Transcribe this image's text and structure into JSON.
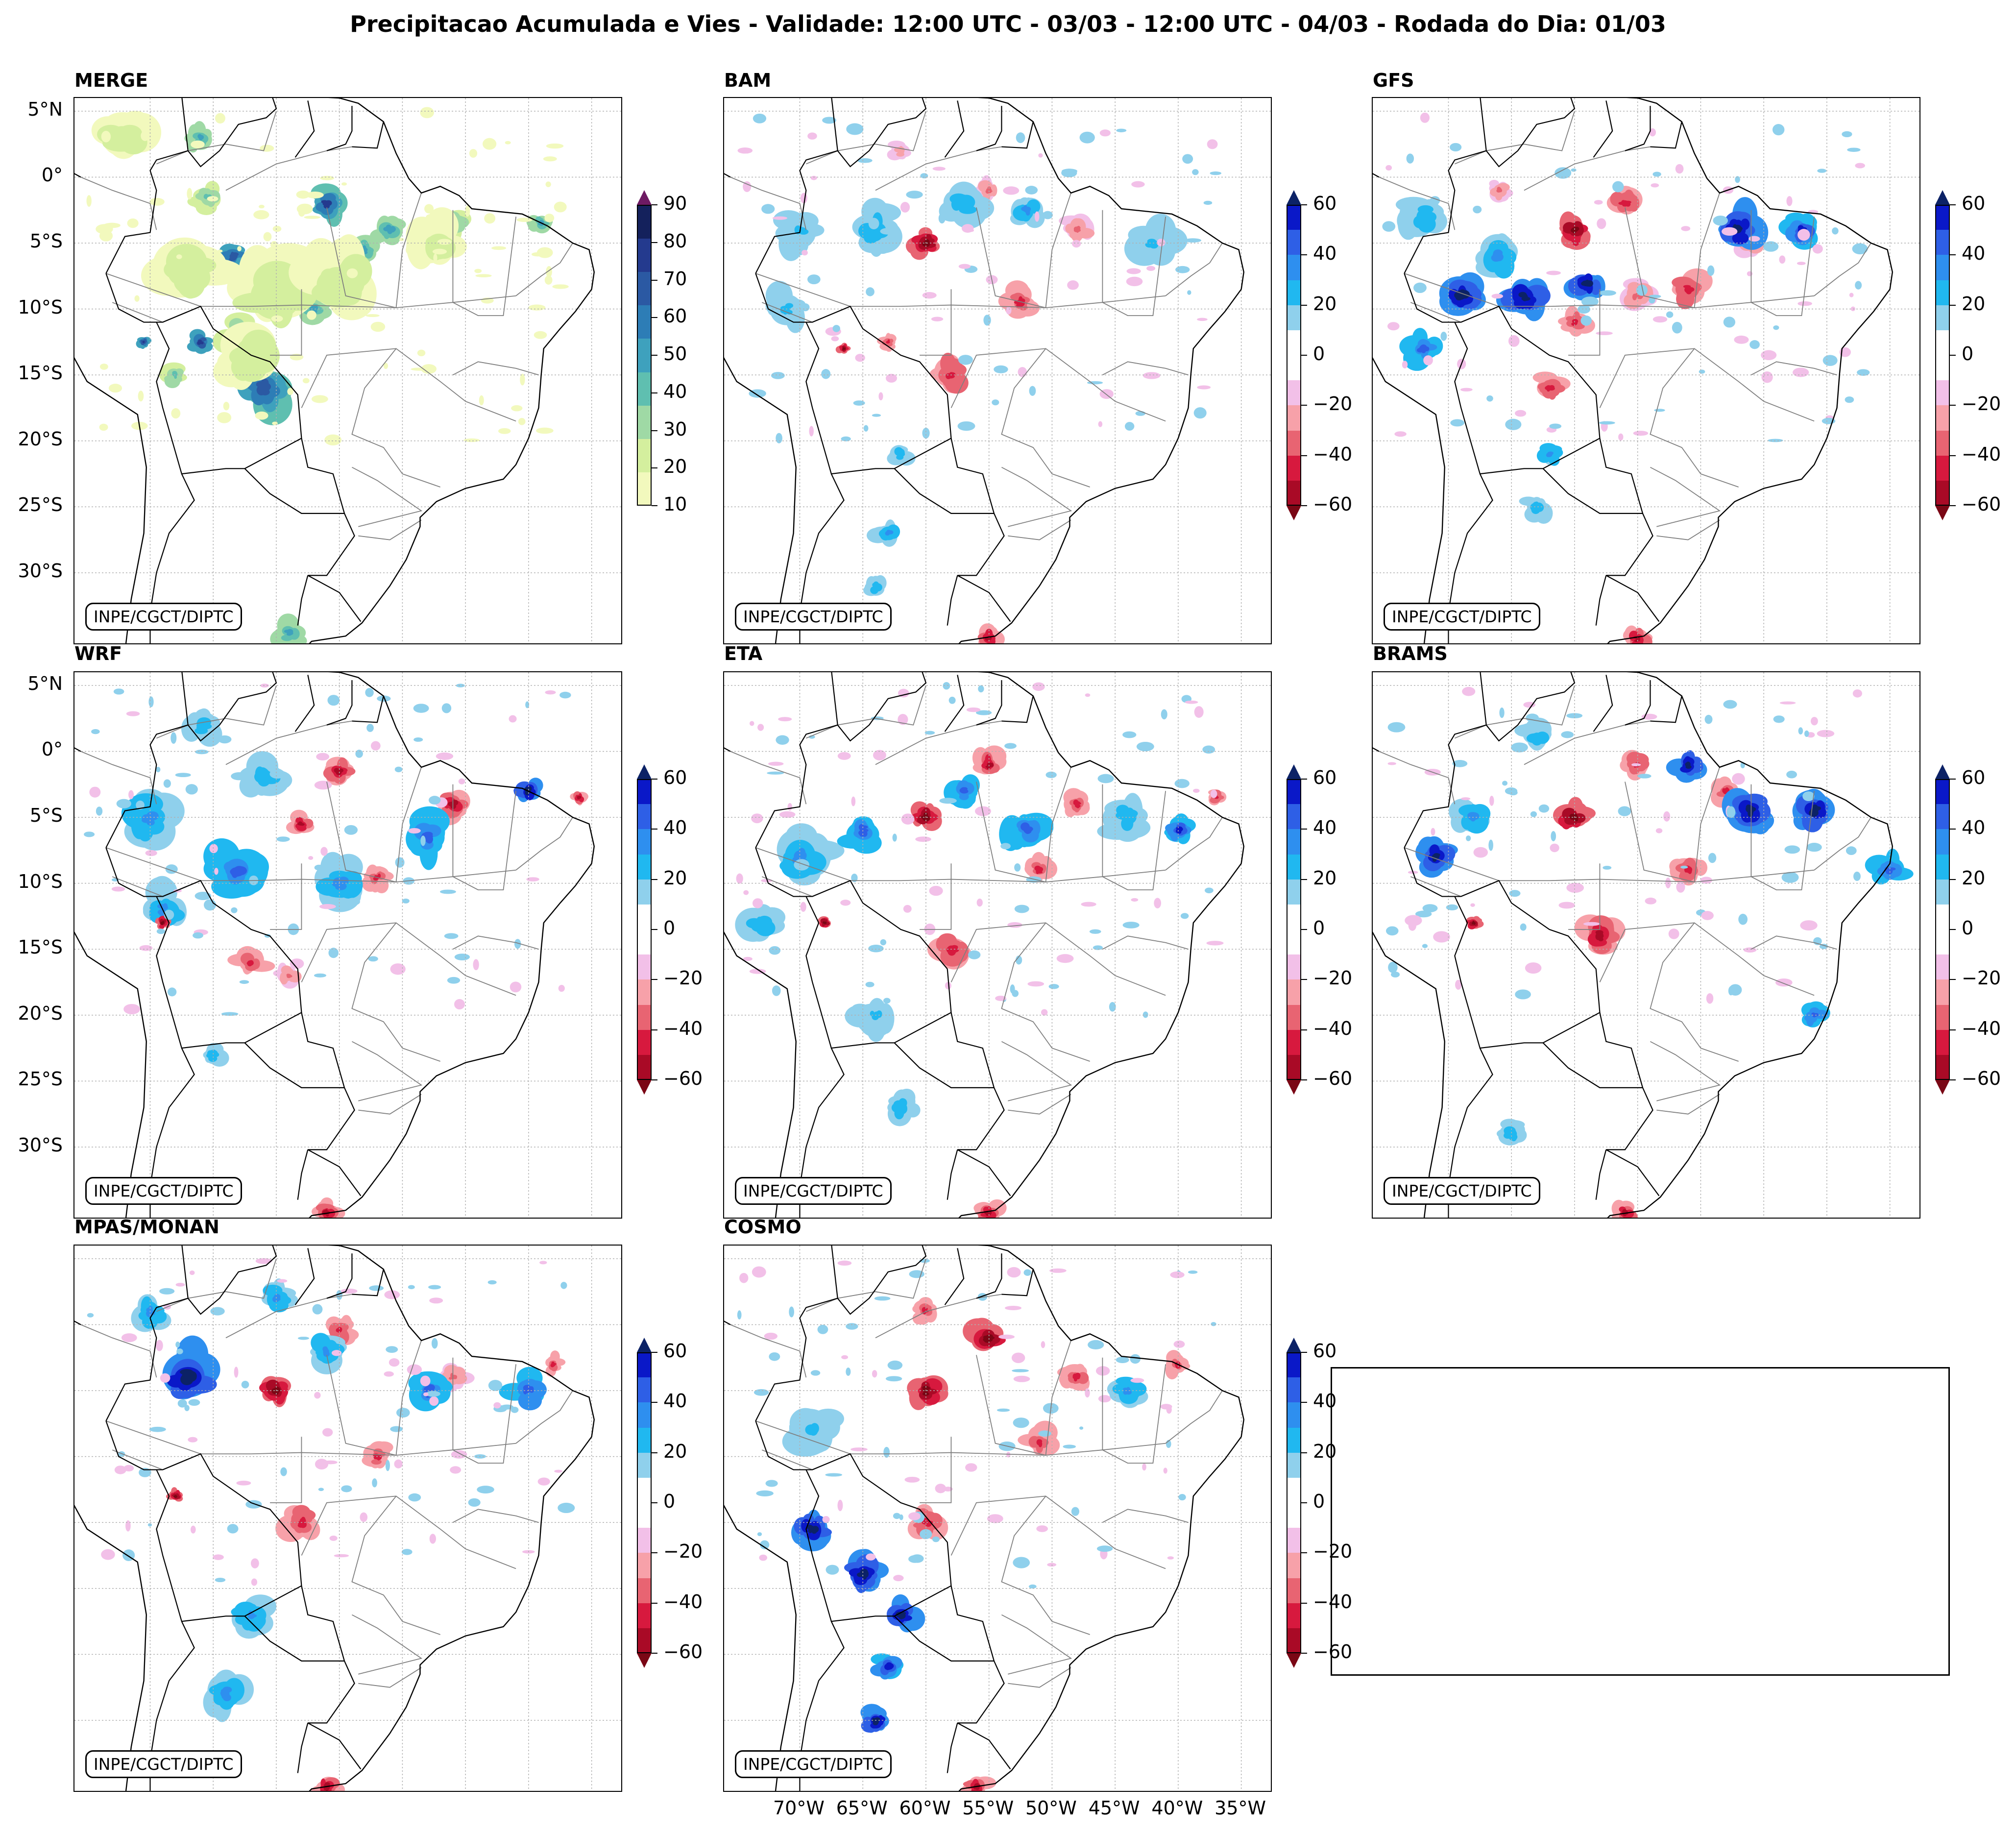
{
  "title": "Precipitacao Acumulada e Vies - Validade: 12:00 UTC - 03/03 - 12:00 UTC - 04/03 - Rodada do Dia: 01/03",
  "credit": "INPE/CGCT/DIPTC",
  "lat_labels": [
    "5°N",
    "0°",
    "5°S",
    "10°S",
    "15°S",
    "20°S",
    "25°S",
    "30°S"
  ],
  "lon_labels": [
    "70°W",
    "65°W",
    "60°W",
    "55°W",
    "50°W",
    "45°W",
    "40°W",
    "35°W"
  ],
  "panels": [
    {
      "name": "MERGE",
      "kind": "precip"
    },
    {
      "name": "BAM",
      "kind": "bias"
    },
    {
      "name": "GFS",
      "kind": "bias"
    },
    {
      "name": "WRF",
      "kind": "bias"
    },
    {
      "name": "ETA",
      "kind": "bias"
    },
    {
      "name": "BRAMS",
      "kind": "bias"
    },
    {
      "name": "MPAS/MONAN",
      "kind": "bias"
    },
    {
      "name": "COSMO",
      "kind": "bias"
    }
  ],
  "precip_colorbar": {
    "ticks": [
      "10",
      "20",
      "30",
      "40",
      "50",
      "60",
      "70",
      "80",
      "90"
    ],
    "colors": [
      "#f2f9bd",
      "#d4ef9e",
      "#9fd9a5",
      "#5fbfb0",
      "#3ea1bd",
      "#2d7db6",
      "#2b59a3",
      "#243a8e",
      "#14215c"
    ],
    "over_color": "#6e1a63",
    "under_color": "#ffffff"
  },
  "bias_colorbar": {
    "ticks": [
      "60",
      "40",
      "20",
      "0",
      "−20",
      "−40",
      "−60"
    ],
    "colors": [
      "#0a18c8",
      "#2e5fe6",
      "#2e8fef",
      "#20b8f0",
      "#8fd0ec",
      "#ffffff",
      "#ffffff",
      "#f2c0e8",
      "#f7a1a9",
      "#e86472",
      "#d7193e",
      "#a90a26"
    ],
    "over_color": "#0c2266",
    "under_color": "#7a0715"
  },
  "colors": {
    "map_line": "#000000",
    "state_line": "#7f7f7f",
    "grid": "#b0b0b0"
  }
}
